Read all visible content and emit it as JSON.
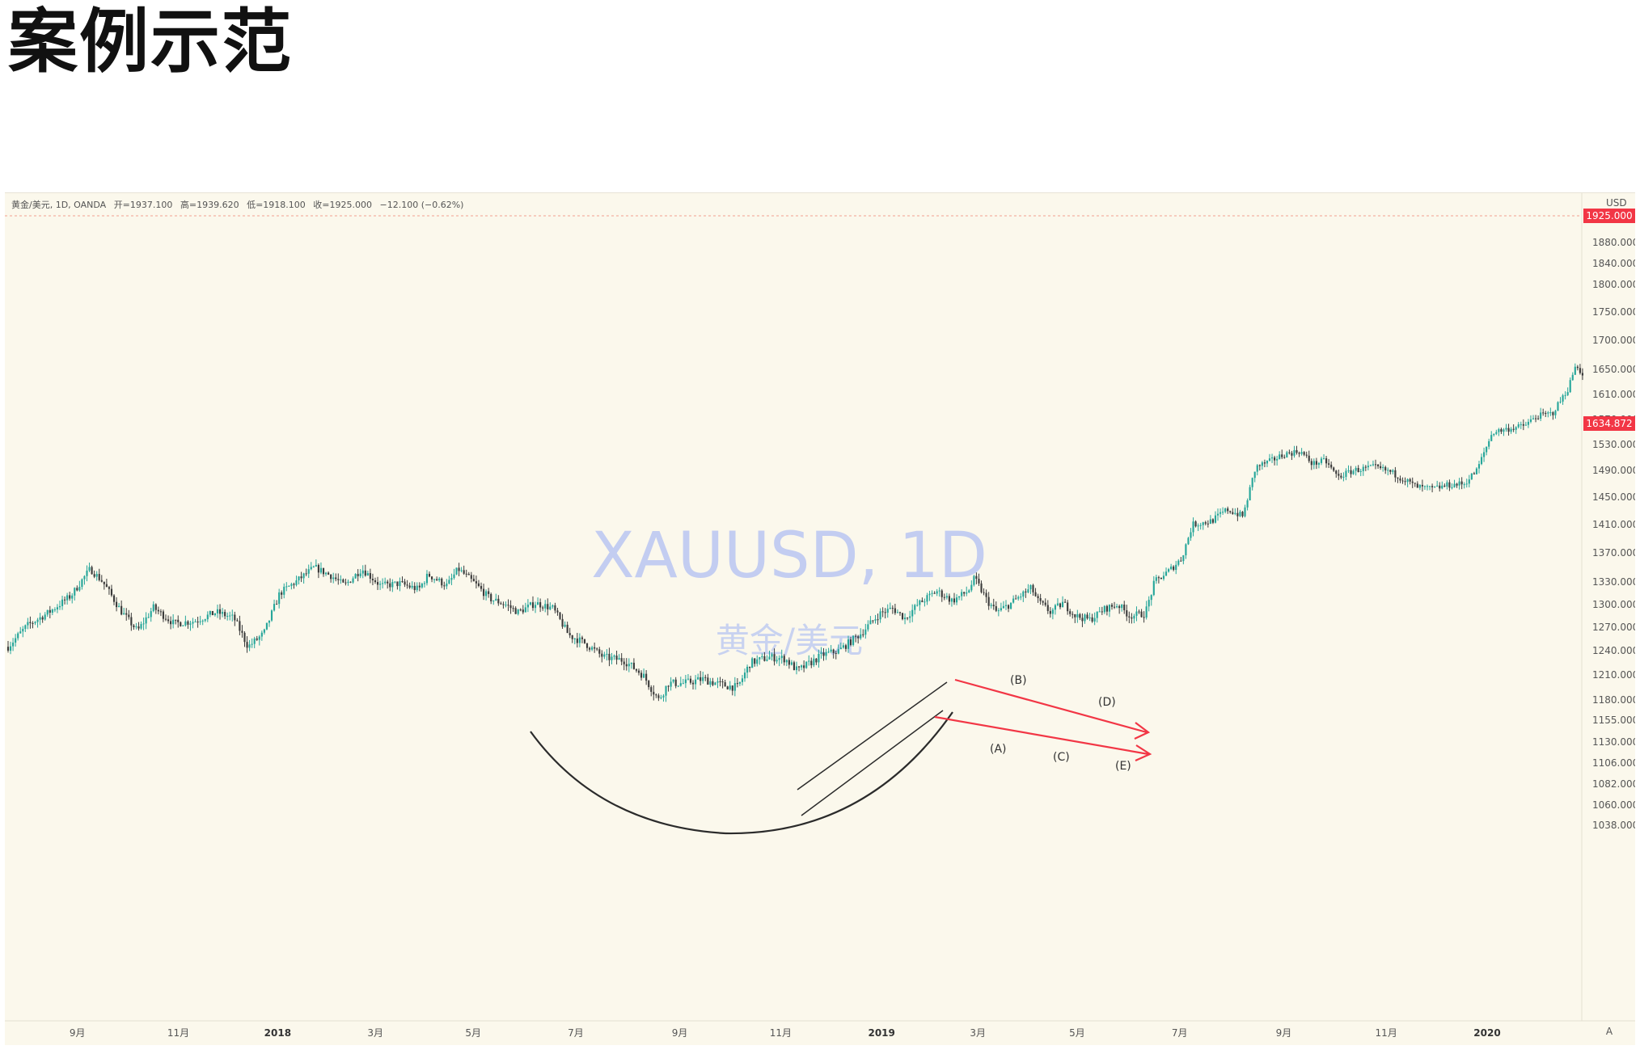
{
  "title": "案例示范",
  "header": {
    "symbol": "黄金/美元, 1D, OANDA",
    "open": "开=1937.100",
    "high": "高=1939.620",
    "low": "低=1918.100",
    "close": "收=1925.000",
    "change": "−12.100 (−0.62%)"
  },
  "currency": "USD",
  "watermark": {
    "symbol": "XAUUSD, 1D",
    "name": "黄金/美元"
  },
  "price_badges": {
    "top": "1925.000",
    "current": "1634.872"
  },
  "colors": {
    "bull": "#26a69a",
    "bear": "#3b3b3b",
    "badge": "#f23645",
    "arrow": "#f23645",
    "bg": "#fbf8ec"
  },
  "chart_data": {
    "type": "candlestick",
    "y_ticks": [
      "1880.000",
      "1840.000",
      "1800.000",
      "1750.000",
      "1700.000",
      "1650.000",
      "1610.000",
      "1570.000",
      "1530.000",
      "1490.000",
      "1450.000",
      "1410.000",
      "1370.000",
      "1330.000",
      "1300.000",
      "1270.000",
      "1240.000",
      "1210.000",
      "1180.000",
      "1155.000",
      "1130.000",
      "1106.000",
      "1082.000",
      "1060.000",
      "1038.000"
    ],
    "x_ticks": [
      {
        "label": "9月",
        "t": 0.046
      },
      {
        "label": "11月",
        "t": 0.11
      },
      {
        "label": "2018",
        "t": 0.173,
        "bold": true
      },
      {
        "label": "3月",
        "t": 0.235
      },
      {
        "label": "5月",
        "t": 0.297
      },
      {
        "label": "7月",
        "t": 0.362
      },
      {
        "label": "9月",
        "t": 0.428
      },
      {
        "label": "11月",
        "t": 0.492
      },
      {
        "label": "2019",
        "t": 0.556,
        "bold": true
      },
      {
        "label": "3月",
        "t": 0.617
      },
      {
        "label": "5月",
        "t": 0.68
      },
      {
        "label": "7月",
        "t": 0.745
      },
      {
        "label": "9月",
        "t": 0.811
      },
      {
        "label": "11月",
        "t": 0.876
      },
      {
        "label": "2020",
        "t": 0.94,
        "bold": true
      }
    ],
    "price_path": [
      [
        0.0,
        1245
      ],
      [
        0.012,
        1272
      ],
      [
        0.026,
        1290
      ],
      [
        0.04,
        1312
      ],
      [
        0.052,
        1348
      ],
      [
        0.06,
        1330
      ],
      [
        0.072,
        1290
      ],
      [
        0.082,
        1265
      ],
      [
        0.092,
        1296
      ],
      [
        0.105,
        1275
      ],
      [
        0.118,
        1278
      ],
      [
        0.132,
        1290
      ],
      [
        0.143,
        1282
      ],
      [
        0.152,
        1245
      ],
      [
        0.162,
        1262
      ],
      [
        0.172,
        1315
      ],
      [
        0.182,
        1330
      ],
      [
        0.194,
        1350
      ],
      [
        0.205,
        1338
      ],
      [
        0.213,
        1325
      ],
      [
        0.224,
        1348
      ],
      [
        0.236,
        1325
      ],
      [
        0.248,
        1328
      ],
      [
        0.26,
        1320
      ],
      [
        0.266,
        1340
      ],
      [
        0.278,
        1325
      ],
      [
        0.285,
        1348
      ],
      [
        0.297,
        1325
      ],
      [
        0.305,
        1308
      ],
      [
        0.315,
        1300
      ],
      [
        0.323,
        1290
      ],
      [
        0.334,
        1302
      ],
      [
        0.345,
        1295
      ],
      [
        0.355,
        1260
      ],
      [
        0.365,
        1250
      ],
      [
        0.377,
        1232
      ],
      [
        0.39,
        1228
      ],
      [
        0.402,
        1210
      ],
      [
        0.412,
        1180
      ],
      [
        0.418,
        1200
      ],
      [
        0.428,
        1200
      ],
      [
        0.44,
        1205
      ],
      [
        0.452,
        1198
      ],
      [
        0.462,
        1195
      ],
      [
        0.47,
        1225
      ],
      [
        0.482,
        1232
      ],
      [
        0.492,
        1230
      ],
      [
        0.5,
        1215
      ],
      [
        0.508,
        1225
      ],
      [
        0.516,
        1235
      ],
      [
        0.526,
        1240
      ],
      [
        0.54,
        1262
      ],
      [
        0.552,
        1288
      ],
      [
        0.56,
        1295
      ],
      [
        0.568,
        1282
      ],
      [
        0.576,
        1300
      ],
      [
        0.588,
        1318
      ],
      [
        0.598,
        1305
      ],
      [
        0.608,
        1318
      ],
      [
        0.612,
        1335
      ],
      [
        0.62,
        1305
      ],
      [
        0.626,
        1290
      ],
      [
        0.634,
        1300
      ],
      [
        0.64,
        1310
      ],
      [
        0.648,
        1322
      ],
      [
        0.652,
        1305
      ],
      [
        0.66,
        1290
      ],
      [
        0.668,
        1302
      ],
      [
        0.676,
        1285
      ],
      [
        0.685,
        1280
      ],
      [
        0.695,
        1295
      ],
      [
        0.703,
        1300
      ],
      [
        0.71,
        1285
      ],
      [
        0.72,
        1288
      ],
      [
        0.726,
        1330
      ],
      [
        0.735,
        1345
      ],
      [
        0.743,
        1362
      ],
      [
        0.75,
        1410
      ],
      [
        0.762,
        1415
      ],
      [
        0.772,
        1432
      ],
      [
        0.782,
        1422
      ],
      [
        0.79,
        1495
      ],
      [
        0.8,
        1505
      ],
      [
        0.808,
        1515
      ],
      [
        0.818,
        1520
      ],
      [
        0.826,
        1500
      ],
      [
        0.834,
        1505
      ],
      [
        0.842,
        1480
      ],
      [
        0.852,
        1490
      ],
      [
        0.865,
        1495
      ],
      [
        0.875,
        1488
      ],
      [
        0.883,
        1478
      ],
      [
        0.892,
        1465
      ],
      [
        0.902,
        1462
      ],
      [
        0.912,
        1468
      ],
      [
        0.922,
        1470
      ],
      [
        0.93,
        1490
      ],
      [
        0.94,
        1550
      ],
      [
        0.95,
        1555
      ],
      [
        0.96,
        1560
      ],
      [
        0.968,
        1575
      ],
      [
        0.978,
        1580
      ],
      [
        0.988,
        1620
      ],
      [
        0.993,
        1660
      ],
      [
        0.997,
        1640
      ]
    ],
    "wave_labels": [
      "(A)",
      "(B)",
      "(C)",
      "(D)",
      "(E)"
    ]
  },
  "icons": {
    "auto_scale": "A"
  }
}
